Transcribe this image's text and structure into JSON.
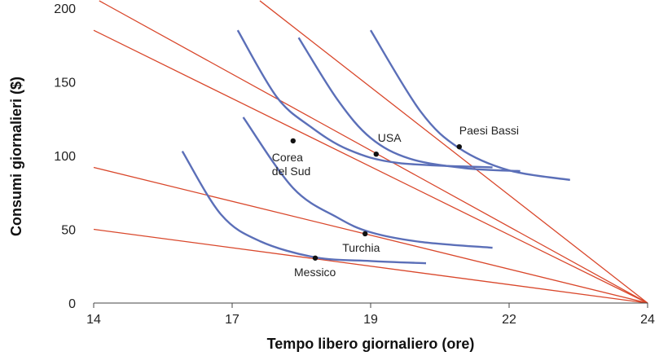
{
  "chart_data": {
    "type": "line",
    "xlabel": "Tempo libero giornaliero (ore)",
    "ylabel": "Consumi giornalieri ($)",
    "xlim": [
      14,
      24
    ],
    "ylim": [
      0,
      200
    ],
    "x_ticks": [
      {
        "value": 14,
        "label": "14"
      },
      {
        "value": 16.5,
        "label": "17"
      },
      {
        "value": 19,
        "label": "19"
      },
      {
        "value": 21.5,
        "label": "22"
      },
      {
        "value": 24,
        "label": "24"
      }
    ],
    "y_ticks": [
      {
        "value": 0,
        "label": "0"
      },
      {
        "value": 50,
        "label": "50"
      },
      {
        "value": 100,
        "label": "100"
      },
      {
        "value": 150,
        "label": "150"
      },
      {
        "value": 200,
        "label": "200"
      }
    ],
    "grid": false,
    "colors": {
      "budget_line": "#d9472b",
      "indifference_curve": "#5b6fb8",
      "point": "#111111"
    },
    "budget_lines": [
      {
        "from": [
          24,
          0
        ],
        "to": [
          14,
          50
        ]
      },
      {
        "from": [
          24,
          0
        ],
        "to": [
          14,
          92
        ]
      },
      {
        "from": [
          24,
          0
        ],
        "to": [
          14,
          185
        ]
      },
      {
        "from": [
          24,
          0
        ],
        "to": [
          14.1,
          205
        ]
      },
      {
        "from": [
          24,
          0
        ],
        "to": [
          17.0,
          205
        ]
      }
    ],
    "indifference_curves": [
      {
        "points": [
          [
            15.6,
            103
          ],
          [
            16.3,
            60
          ],
          [
            17.0,
            42
          ],
          [
            18.0,
            31
          ],
          [
            19.0,
            28.5
          ],
          [
            20.0,
            27
          ]
        ]
      },
      {
        "points": [
          [
            16.7,
            126
          ],
          [
            17.6,
            78
          ],
          [
            18.4,
            58
          ],
          [
            19.0,
            48
          ],
          [
            19.9,
            41.5
          ],
          [
            21.2,
            37.5
          ]
        ]
      },
      {
        "points": [
          [
            16.6,
            185
          ],
          [
            17.3,
            140
          ],
          [
            17.9,
            120
          ],
          [
            18.6,
            104
          ],
          [
            19.5,
            95
          ],
          [
            21.2,
            92
          ]
        ]
      },
      {
        "points": [
          [
            17.7,
            180
          ],
          [
            18.4,
            138
          ],
          [
            19.0,
            112
          ],
          [
            19.7,
            98
          ],
          [
            20.7,
            91.5
          ],
          [
            21.7,
            89.5
          ]
        ]
      },
      {
        "points": [
          [
            19.0,
            185
          ],
          [
            19.9,
            130
          ],
          [
            20.6,
            105
          ],
          [
            21.5,
            90
          ],
          [
            22.6,
            83.5
          ]
        ]
      }
    ],
    "points": [
      {
        "label": "Messico",
        "x": 18.0,
        "y": 30.5
      },
      {
        "label": "Turchia",
        "x": 18.9,
        "y": 47
      },
      {
        "label": "Corea\ndel Sud",
        "x": 17.6,
        "y": 110
      },
      {
        "label": "USA",
        "x": 19.1,
        "y": 101
      },
      {
        "label": "Paesi Bassi",
        "x": 20.6,
        "y": 106
      }
    ]
  }
}
